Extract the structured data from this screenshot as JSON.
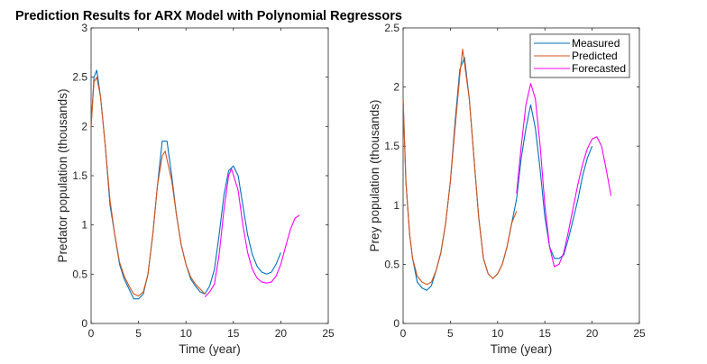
{
  "title": "Prediction Results for ARX Model with Polynomial Regressors",
  "colors": {
    "measured": "#0072BD",
    "predicted": "#D95319",
    "forecasted": "#FF00FF"
  },
  "chart_data": [
    {
      "type": "line",
      "xlabel": "Time (year)",
      "ylabel": "Predator population (thousands)",
      "xlim": [
        0,
        25
      ],
      "ylim": [
        0,
        3
      ],
      "xticks": [
        0,
        5,
        10,
        15,
        20,
        25
      ],
      "yticks": [
        0,
        0.5,
        1,
        1.5,
        2,
        2.5,
        3
      ],
      "grid": false,
      "series": [
        {
          "name": "Measured",
          "x": [
            0,
            0.3,
            0.6,
            1,
            1.5,
            2,
            2.5,
            3,
            3.5,
            4,
            4.5,
            5,
            5.5,
            6,
            6.5,
            7,
            7.5,
            8,
            8.5,
            9,
            9.5,
            10,
            10.5,
            11,
            11.5,
            12,
            12.5,
            13,
            13.5,
            14,
            14.5,
            15,
            15.5,
            16,
            16.5,
            17,
            17.5,
            18,
            18.5,
            19,
            19.5,
            20
          ],
          "y": [
            2.0,
            2.5,
            2.57,
            2.3,
            1.8,
            1.2,
            0.9,
            0.6,
            0.45,
            0.35,
            0.25,
            0.25,
            0.3,
            0.5,
            0.9,
            1.4,
            1.85,
            1.85,
            1.5,
            1.1,
            0.8,
            0.6,
            0.45,
            0.38,
            0.32,
            0.3,
            0.38,
            0.55,
            0.9,
            1.3,
            1.55,
            1.6,
            1.5,
            1.2,
            0.9,
            0.7,
            0.58,
            0.52,
            0.5,
            0.52,
            0.6,
            0.72
          ]
        },
        {
          "name": "Predicted",
          "x": [
            0,
            0.3,
            0.6,
            1,
            1.5,
            2,
            2.5,
            3,
            3.5,
            4,
            4.5,
            5,
            5.5,
            6,
            6.5,
            7,
            7.5,
            7.8,
            8.5,
            9,
            9.5,
            10,
            10.5,
            11,
            11.5,
            12
          ],
          "y": [
            2.0,
            2.45,
            2.5,
            2.3,
            1.8,
            1.25,
            0.9,
            0.62,
            0.48,
            0.38,
            0.3,
            0.28,
            0.32,
            0.5,
            0.9,
            1.4,
            1.7,
            1.75,
            1.45,
            1.1,
            0.8,
            0.6,
            0.47,
            0.4,
            0.35,
            0.3
          ]
        },
        {
          "name": "Forecasted",
          "x": [
            12,
            12.5,
            13,
            13.5,
            14,
            14.5,
            14.8,
            15.5,
            16,
            16.5,
            17,
            17.5,
            18,
            18.5,
            19,
            19.5,
            20,
            20.5,
            21,
            21.5,
            22
          ],
          "y": [
            0.27,
            0.32,
            0.4,
            0.7,
            1.15,
            1.5,
            1.57,
            1.35,
            1.0,
            0.72,
            0.55,
            0.46,
            0.42,
            0.41,
            0.42,
            0.48,
            0.6,
            0.78,
            0.95,
            1.07,
            1.1
          ]
        }
      ]
    },
    {
      "type": "line",
      "xlabel": "Time (year)",
      "ylabel": "Prey population (thousands)",
      "xlim": [
        0,
        25
      ],
      "ylim": [
        0,
        2.5
      ],
      "xticks": [
        0,
        5,
        10,
        15,
        20,
        25
      ],
      "yticks": [
        0,
        0.5,
        1,
        1.5,
        2,
        2.5
      ],
      "grid": false,
      "legend": "top-right",
      "series": [
        {
          "name": "Measured",
          "x": [
            0,
            0.3,
            0.7,
            1,
            1.5,
            2,
            2.5,
            3,
            3.5,
            4,
            4.5,
            5,
            5.5,
            6,
            6.5,
            7,
            7.5,
            8,
            8.5,
            9,
            9.5,
            10,
            10.5,
            11,
            11.5,
            12,
            12.5,
            13,
            13.5,
            14,
            14.5,
            15,
            15.5,
            16,
            16.5,
            17,
            17.5,
            18,
            18.5,
            19,
            19.5,
            20
          ],
          "y": [
            1.9,
            1.2,
            0.75,
            0.55,
            0.35,
            0.3,
            0.28,
            0.32,
            0.45,
            0.6,
            0.85,
            1.2,
            1.7,
            2.15,
            2.25,
            1.9,
            1.4,
            0.9,
            0.55,
            0.42,
            0.38,
            0.42,
            0.5,
            0.65,
            0.85,
            1.05,
            1.4,
            1.65,
            1.85,
            1.65,
            1.3,
            0.9,
            0.65,
            0.55,
            0.55,
            0.58,
            0.72,
            0.88,
            1.05,
            1.25,
            1.4,
            1.5
          ]
        },
        {
          "name": "Predicted",
          "x": [
            0,
            0.3,
            0.7,
            1,
            1.5,
            2,
            2.5,
            3,
            3.5,
            4,
            4.5,
            5,
            5.5,
            6,
            6.3,
            6.5,
            7,
            7.5,
            8,
            8.5,
            9,
            9.5,
            10,
            10.5,
            11,
            11.5,
            12
          ],
          "y": [
            1.9,
            1.2,
            0.75,
            0.55,
            0.4,
            0.35,
            0.33,
            0.35,
            0.45,
            0.6,
            0.85,
            1.2,
            1.65,
            2.1,
            2.32,
            2.2,
            1.9,
            1.4,
            0.9,
            0.55,
            0.42,
            0.38,
            0.42,
            0.5,
            0.65,
            0.85,
            0.95
          ]
        },
        {
          "name": "Forecasted",
          "x": [
            12,
            12.5,
            13,
            13.5,
            14,
            14.5,
            15,
            15.5,
            16,
            16.5,
            17,
            17.5,
            18,
            18.5,
            19,
            19.5,
            20,
            20.5,
            21,
            21.5,
            22
          ],
          "y": [
            1.1,
            1.5,
            1.85,
            2.03,
            1.9,
            1.5,
            1.0,
            0.65,
            0.48,
            0.5,
            0.6,
            0.78,
            0.98,
            1.18,
            1.35,
            1.48,
            1.56,
            1.58,
            1.5,
            1.3,
            1.08
          ]
        }
      ]
    }
  ]
}
